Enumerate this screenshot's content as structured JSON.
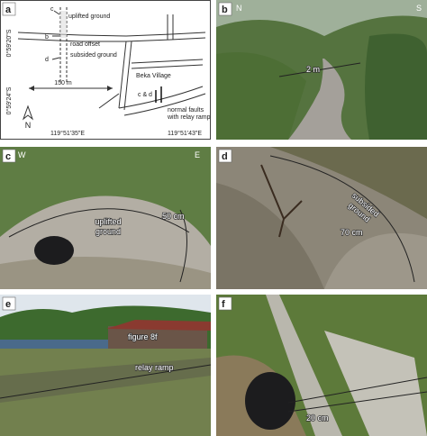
{
  "panels": [
    {
      "label": "a",
      "texts": [
        "uplifted ground",
        "c",
        "b",
        "road offset",
        "d",
        "subsided ground",
        "Beka Village",
        "c & d",
        "normal faults",
        "with relay ramp",
        "150 m",
        "N",
        "0°59'20\"S",
        "0°59'24\"S",
        "119°51'35\"E",
        "119°51'43\"E"
      ]
    },
    {
      "label": "b",
      "texts": [
        "N",
        "S",
        "2 m"
      ]
    },
    {
      "label": "c",
      "texts": [
        "W",
        "E",
        "uplifted",
        "ground",
        "50 cm"
      ]
    },
    {
      "label": "d",
      "texts": [
        "subsided",
        "ground",
        "70 cm"
      ]
    },
    {
      "label": "e",
      "texts": [
        "figure 8f",
        "relay ramp"
      ]
    },
    {
      "label": "f",
      "texts": [
        "20 cm"
      ]
    }
  ]
}
